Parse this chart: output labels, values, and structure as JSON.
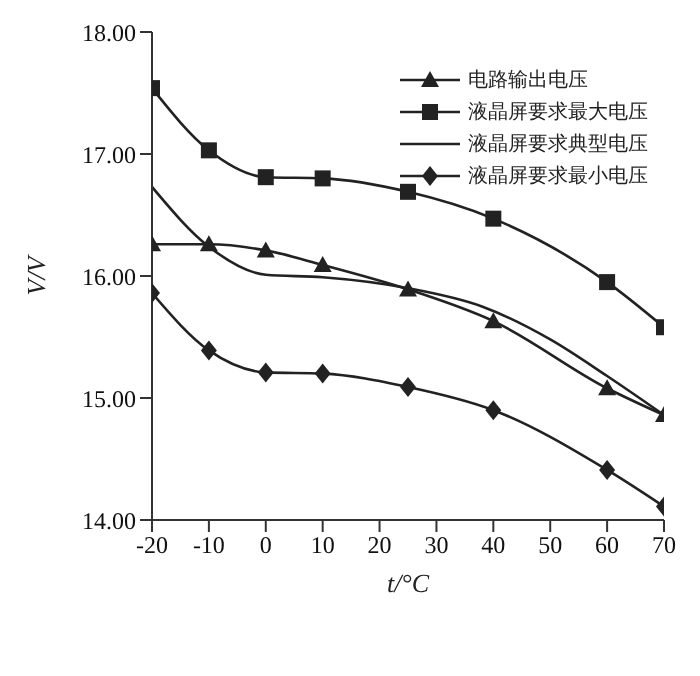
{
  "chart_data": {
    "type": "line",
    "xlabel": "t/°C",
    "ylabel": "V/V",
    "xlim": [
      -20,
      70
    ],
    "xticks": [
      -20,
      -10,
      0,
      10,
      20,
      30,
      40,
      50,
      60,
      70
    ],
    "ylim": [
      14,
      18
    ],
    "yticks": [
      {
        "value": 14,
        "label": "14.00"
      },
      {
        "value": 15,
        "label": "15.00"
      },
      {
        "value": 16,
        "label": "16.00"
      },
      {
        "value": 17,
        "label": "17.00"
      },
      {
        "value": 18,
        "label": "18.00"
      }
    ],
    "legend": "top right",
    "grid": false,
    "line_style": "solid",
    "series": [
      {
        "name": "电路输出电压",
        "color": "#222222",
        "marker": "triangle",
        "x": [
          -20,
          -10,
          0,
          10,
          25,
          40,
          60,
          70
        ],
        "values": [
          16.26,
          16.26,
          16.21,
          16.09,
          15.89,
          15.63,
          15.08,
          14.86
        ]
      },
      {
        "name": "液晶屏要求最大电压",
        "color": "#222222",
        "marker": "square",
        "x": [
          -20,
          -10,
          0,
          10,
          25,
          40,
          60,
          70
        ],
        "values": [
          17.54,
          17.03,
          16.81,
          16.8,
          16.69,
          16.47,
          15.95,
          15.58
        ]
      },
      {
        "name": "液晶屏要求典型电压",
        "color": "#222222",
        "marker": "none",
        "x": [
          -20,
          -10,
          0,
          10,
          25,
          38,
          50,
          60,
          70
        ],
        "values": [
          16.73,
          16.24,
          16.01,
          15.99,
          15.9,
          15.75,
          15.48,
          15.18,
          14.86
        ]
      },
      {
        "name": "液晶屏要求最小电压",
        "color": "#222222",
        "marker": "diamond",
        "x": [
          -20,
          -10,
          0,
          10,
          25,
          40,
          60,
          70
        ],
        "values": [
          15.86,
          15.39,
          15.21,
          15.2,
          15.09,
          14.9,
          14.41,
          14.11
        ]
      }
    ]
  }
}
